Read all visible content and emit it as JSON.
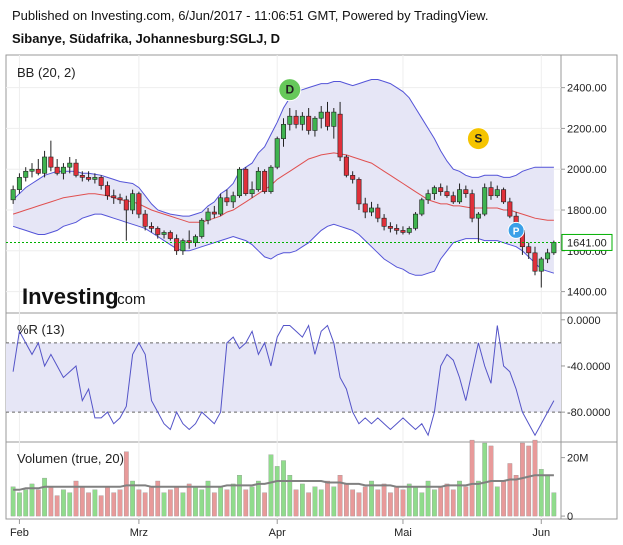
{
  "header": {
    "published": "Published on Investing.com, 6/Jun/2017 - 11:06:51 GMT, Powered by TradingView.",
    "symbol": "Sibanye, Südafrika, Johannesburg:SGLJ, D"
  },
  "logo": {
    "word": "Investing",
    "suffix": ".com"
  },
  "colors": {
    "up": "#3fb34f",
    "down": "#e0303a",
    "upVol": "#90dc8c",
    "downVol": "#e89a9a",
    "band": "#5454d8",
    "bandFill": "#e6e6f6",
    "mid": "#e05050",
    "wr": "#5454c8",
    "volMa": "#808080",
    "last": "#00b000",
    "D": "#66c85a",
    "S": "#f5c400",
    "P": "#3aa0e8"
  },
  "chart_data": [
    {
      "type": "candlestick",
      "title": "BB (20, 2)",
      "ylim": [
        1300,
        2560
      ],
      "y_ticks": [
        1400,
        1600,
        1800,
        2000,
        2200,
        2400
      ],
      "y_tick_labels": [
        "1400.00",
        "1600.00",
        "1800.00",
        "2000.00",
        "2200.00",
        "2400.00"
      ],
      "last_price": 1641,
      "last_price_label": "1641.00",
      "x_tick_labels": [
        "Feb",
        "Mrz",
        "Apr",
        "Mai",
        "Jun"
      ],
      "x_tick_index": [
        1,
        20,
        42,
        62,
        84
      ],
      "ohlc": [
        [
          1850,
          1920,
          1830,
          1900
        ],
        [
          1900,
          1980,
          1880,
          1960
        ],
        [
          1960,
          2010,
          1940,
          1990
        ],
        [
          1990,
          2030,
          1960,
          2000
        ],
        [
          2000,
          2050,
          1970,
          1980
        ],
        [
          1980,
          2090,
          1960,
          2060
        ],
        [
          2060,
          2140,
          1990,
          2010
        ],
        [
          2010,
          2050,
          1970,
          1980
        ],
        [
          1980,
          2030,
          1950,
          2010
        ],
        [
          2010,
          2060,
          1980,
          2030
        ],
        [
          2030,
          2050,
          1960,
          1970
        ],
        [
          1970,
          1990,
          1940,
          1960
        ],
        [
          1960,
          1990,
          1940,
          1950
        ],
        [
          1950,
          1980,
          1930,
          1960
        ],
        [
          1960,
          1970,
          1900,
          1920
        ],
        [
          1920,
          1940,
          1850,
          1870
        ],
        [
          1870,
          1900,
          1830,
          1860
        ],
        [
          1860,
          1880,
          1830,
          1850
        ],
        [
          1850,
          1870,
          1650,
          1800
        ],
        [
          1800,
          1900,
          1780,
          1880
        ],
        [
          1880,
          1890,
          1760,
          1780
        ],
        [
          1780,
          1800,
          1700,
          1720
        ],
        [
          1720,
          1740,
          1690,
          1710
        ],
        [
          1710,
          1720,
          1660,
          1680
        ],
        [
          1680,
          1700,
          1660,
          1690
        ],
        [
          1690,
          1700,
          1650,
          1660
        ],
        [
          1660,
          1680,
          1580,
          1600
        ],
        [
          1600,
          1660,
          1580,
          1650
        ],
        [
          1650,
          1700,
          1610,
          1640
        ],
        [
          1640,
          1680,
          1620,
          1670
        ],
        [
          1670,
          1760,
          1660,
          1750
        ],
        [
          1750,
          1810,
          1730,
          1790
        ],
        [
          1790,
          1820,
          1760,
          1780
        ],
        [
          1780,
          1880,
          1770,
          1860
        ],
        [
          1860,
          1900,
          1820,
          1840
        ],
        [
          1840,
          1890,
          1810,
          1870
        ],
        [
          1870,
          2010,
          1860,
          2000
        ],
        [
          2000,
          2010,
          1870,
          1880
        ],
        [
          1880,
          1940,
          1860,
          1900
        ],
        [
          1900,
          2010,
          1890,
          1990
        ],
        [
          1990,
          2000,
          1880,
          1890
        ],
        [
          1890,
          2020,
          1880,
          2010
        ],
        [
          2010,
          2160,
          2000,
          2150
        ],
        [
          2150,
          2250,
          2110,
          2220
        ],
        [
          2220,
          2300,
          2190,
          2260
        ],
        [
          2260,
          2290,
          2200,
          2220
        ],
        [
          2220,
          2280,
          2190,
          2260
        ],
        [
          2260,
          2300,
          2170,
          2190
        ],
        [
          2190,
          2260,
          2160,
          2250
        ],
        [
          2250,
          2310,
          2200,
          2280
        ],
        [
          2280,
          2330,
          2190,
          2210
        ],
        [
          2210,
          2300,
          2150,
          2280
        ],
        [
          2270,
          2330,
          2040,
          2060
        ],
        [
          2060,
          2070,
          1960,
          1970
        ],
        [
          1970,
          1990,
          1930,
          1950
        ],
        [
          1950,
          1960,
          1800,
          1830
        ],
        [
          1830,
          1860,
          1760,
          1790
        ],
        [
          1790,
          1840,
          1770,
          1810
        ],
        [
          1810,
          1830,
          1740,
          1760
        ],
        [
          1760,
          1780,
          1700,
          1720
        ],
        [
          1720,
          1740,
          1690,
          1710
        ],
        [
          1710,
          1730,
          1680,
          1700
        ],
        [
          1700,
          1720,
          1680,
          1690
        ],
        [
          1690,
          1720,
          1680,
          1710
        ],
        [
          1710,
          1790,
          1700,
          1780
        ],
        [
          1780,
          1860,
          1770,
          1850
        ],
        [
          1850,
          1900,
          1830,
          1880
        ],
        [
          1880,
          1920,
          1850,
          1910
        ],
        [
          1910,
          1930,
          1870,
          1890
        ],
        [
          1890,
          1920,
          1860,
          1870
        ],
        [
          1870,
          1890,
          1830,
          1840
        ],
        [
          1840,
          1930,
          1830,
          1900
        ],
        [
          1900,
          1920,
          1860,
          1880
        ],
        [
          1880,
          1900,
          1740,
          1760
        ],
        [
          1760,
          1790,
          1640,
          1780
        ],
        [
          1780,
          1930,
          1770,
          1910
        ],
        [
          1910,
          1940,
          1850,
          1870
        ],
        [
          1870,
          1920,
          1860,
          1900
        ],
        [
          1900,
          1910,
          1830,
          1840
        ],
        [
          1840,
          1860,
          1760,
          1770
        ],
        [
          1770,
          1790,
          1680,
          1700
        ],
        [
          1700,
          1720,
          1580,
          1620
        ],
        [
          1620,
          1640,
          1560,
          1590
        ],
        [
          1590,
          1620,
          1480,
          1500
        ],
        [
          1500,
          1570,
          1420,
          1560
        ],
        [
          1560,
          1610,
          1540,
          1590
        ],
        [
          1590,
          1650,
          1580,
          1641
        ]
      ],
      "bb_upper": [
        1850,
        1880,
        1910,
        1930,
        1950,
        1970,
        1980,
        1990,
        1990,
        1990,
        1990,
        1980,
        1980,
        1975,
        1970,
        1960,
        1950,
        1940,
        1935,
        1930,
        1910,
        1870,
        1830,
        1800,
        1790,
        1780,
        1775,
        1770,
        1770,
        1780,
        1790,
        1820,
        1840,
        1880,
        1900,
        1930,
        1990,
        2010,
        2030,
        2080,
        2110,
        2170,
        2230,
        2300,
        2350,
        2380,
        2390,
        2400,
        2410,
        2420,
        2420,
        2430,
        2430,
        2420,
        2410,
        2420,
        2430,
        2440,
        2440,
        2430,
        2420,
        2400,
        2380,
        2350,
        2300,
        2250,
        2200,
        2150,
        2090,
        2040,
        2000,
        1990,
        1970,
        1960,
        1960,
        1970,
        1970,
        1970,
        1960,
        1960,
        1970,
        1990,
        2000,
        2010,
        2010,
        2010,
        2010
      ],
      "bb_middle": [
        1780,
        1790,
        1800,
        1810,
        1820,
        1830,
        1840,
        1850,
        1860,
        1865,
        1870,
        1875,
        1880,
        1880,
        1875,
        1870,
        1860,
        1850,
        1845,
        1840,
        1830,
        1815,
        1800,
        1790,
        1780,
        1770,
        1760,
        1750,
        1740,
        1740,
        1740,
        1750,
        1760,
        1770,
        1790,
        1800,
        1820,
        1840,
        1860,
        1880,
        1900,
        1920,
        1950,
        1970,
        1990,
        2010,
        2030,
        2050,
        2060,
        2070,
        2075,
        2080,
        2075,
        2070,
        2060,
        2050,
        2040,
        2030,
        2010,
        1990,
        1970,
        1950,
        1930,
        1910,
        1890,
        1870,
        1850,
        1840,
        1830,
        1830,
        1820,
        1820,
        1815,
        1810,
        1810,
        1810,
        1810,
        1810,
        1800,
        1800,
        1790,
        1780,
        1770,
        1760,
        1755,
        1750,
        1750
      ],
      "bb_lower": [
        1720,
        1710,
        1700,
        1690,
        1680,
        1680,
        1690,
        1700,
        1720,
        1730,
        1740,
        1760,
        1770,
        1780,
        1780,
        1770,
        1760,
        1750,
        1740,
        1730,
        1720,
        1710,
        1690,
        1670,
        1650,
        1630,
        1610,
        1600,
        1600,
        1610,
        1620,
        1630,
        1640,
        1650,
        1660,
        1670,
        1660,
        1650,
        1630,
        1600,
        1570,
        1560,
        1580,
        1590,
        1590,
        1600,
        1620,
        1640,
        1670,
        1700,
        1720,
        1730,
        1720,
        1710,
        1700,
        1680,
        1650,
        1620,
        1590,
        1560,
        1540,
        1520,
        1510,
        1490,
        1480,
        1480,
        1490,
        1500,
        1560,
        1600,
        1640,
        1650,
        1660,
        1660,
        1660,
        1650,
        1650,
        1650,
        1640,
        1630,
        1620,
        1600,
        1570,
        1540,
        1510,
        1500,
        1490
      ],
      "markers": [
        {
          "label": "D",
          "index": 44,
          "value": 2390
        },
        {
          "label": "S",
          "index": 74,
          "value": 2150
        },
        {
          "label": "P",
          "index": 80,
          "value": 1700
        }
      ]
    },
    {
      "type": "line",
      "title": "%R (13)",
      "ylim": [
        -105,
        5
      ],
      "y_ticks": [
        0,
        -40,
        -80
      ],
      "y_tick_labels": [
        "0.0000",
        "-40.0000",
        "-80.0000"
      ],
      "band": [
        -20,
        -80
      ],
      "values": [
        -45,
        -10,
        -20,
        -30,
        -20,
        -40,
        -30,
        -40,
        -50,
        -45,
        -40,
        -70,
        -60,
        -85,
        -85,
        -80,
        -90,
        -85,
        -75,
        -30,
        -20,
        -30,
        -70,
        -80,
        -90,
        -95,
        -80,
        -90,
        -95,
        -90,
        -80,
        -85,
        -90,
        -80,
        -20,
        -15,
        -25,
        -20,
        -10,
        -30,
        -20,
        -40,
        -15,
        -5,
        -5,
        -10,
        -15,
        -5,
        -30,
        -10,
        -5,
        -20,
        -50,
        -60,
        -80,
        -90,
        -85,
        -90,
        -85,
        -90,
        -95,
        -90,
        -85,
        -90,
        -95,
        -90,
        -100,
        -80,
        -40,
        -30,
        -35,
        -50,
        -70,
        -45,
        -20,
        -40,
        -55,
        -5,
        -40,
        -45,
        -60,
        -80,
        -90,
        -100,
        -90,
        -80,
        -70
      ]
    },
    {
      "type": "bar",
      "title": "Volumen (true, 20)",
      "ylim": [
        -1,
        25
      ],
      "y_ticks": [
        0,
        20
      ],
      "y_tick_labels": [
        "0",
        "20M"
      ],
      "values": [
        10,
        8,
        9,
        11,
        9,
        13,
        10,
        7,
        9,
        8,
        12,
        10,
        8,
        9,
        7,
        10,
        8,
        9,
        22,
        12,
        9,
        8,
        10,
        12,
        8,
        9,
        10,
        8,
        11,
        10,
        9,
        12,
        8,
        10,
        9,
        11,
        14,
        9,
        10,
        12,
        8,
        21,
        17,
        19,
        14,
        9,
        11,
        8,
        10,
        9,
        12,
        10,
        14,
        11,
        9,
        8,
        10,
        12,
        9,
        11,
        8,
        10,
        9,
        11,
        10,
        8,
        12,
        9,
        10,
        11,
        9,
        12,
        10,
        26,
        12,
        25,
        24,
        10,
        12,
        18,
        14,
        25,
        24,
        26,
        16,
        14,
        8
      ],
      "ma": [
        9,
        9,
        9.5,
        9.5,
        9.5,
        10,
        10,
        10,
        10,
        10,
        10,
        10,
        10,
        10,
        10,
        10,
        10,
        10,
        10.5,
        10.5,
        10.5,
        10.5,
        10,
        10,
        10,
        10,
        10,
        10,
        10,
        10,
        10,
        10,
        10,
        10,
        10.5,
        10.5,
        10.5,
        10.5,
        10.5,
        11,
        11,
        11.5,
        12,
        12,
        12,
        12,
        12,
        12,
        12,
        12,
        11.5,
        11.5,
        11.5,
        11,
        11,
        11,
        10.5,
        10.5,
        10.5,
        10.5,
        10.5,
        10,
        10,
        10,
        10,
        10,
        10,
        10,
        10,
        10.5,
        10.5,
        10.5,
        10.5,
        11,
        11,
        11.5,
        12,
        12,
        12,
        12.5,
        12.5,
        13,
        13.5,
        14,
        14,
        14,
        14
      ]
    }
  ]
}
